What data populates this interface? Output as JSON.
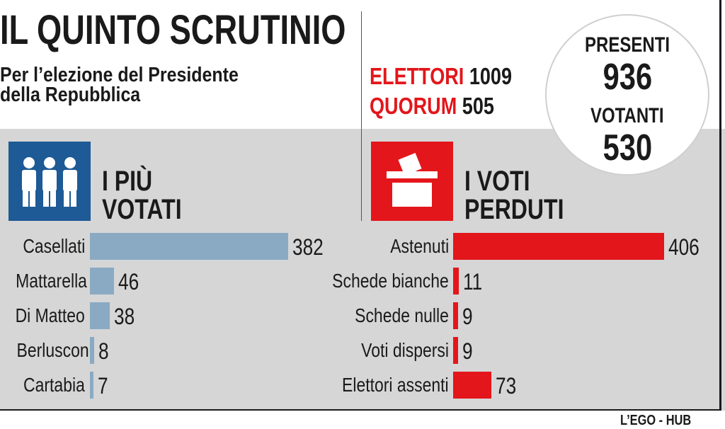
{
  "header": {
    "title": "IL QUINTO SCRUTINIO",
    "subtitle_line1": "Per l’elezione del Presidente",
    "subtitle_line2": "della Repubblica"
  },
  "stats": {
    "elettori_label": "ELETTORI",
    "elettori_value": "1009",
    "quorum_label": "QUORUM",
    "quorum_value": "505"
  },
  "circle": {
    "presenti_label": "PRESENTI",
    "presenti_value": "936",
    "votanti_label": "VOTANTI",
    "votanti_value": "530"
  },
  "sections": {
    "left_title_line1": "I PIÙ",
    "left_title_line2": "VOTATI",
    "left_icon": "people-icon",
    "right_title_line1": "I VOTI",
    "right_title_line2": "PERDUTI",
    "right_icon": "ballot-box-icon"
  },
  "colors": {
    "accent_red": "#e3161b",
    "bar_blue": "#8aaac4",
    "icon_blue": "#1d5a96"
  },
  "source": "L’EGO - HUB",
  "chart_data": [
    {
      "type": "bar",
      "orientation": "horizontal",
      "title": "I PIÙ VOTATI",
      "categories": [
        "Casellati",
        "Mattarella",
        "Di Matteo",
        "Berlusconi",
        "Cartabia"
      ],
      "values": [
        382,
        46,
        38,
        8,
        7
      ],
      "color": "#8aaac4"
    },
    {
      "type": "bar",
      "orientation": "horizontal",
      "title": "I VOTI PERDUTI",
      "categories": [
        "Astenuti",
        "Schede bianche",
        "Schede nulle",
        "Voti dispersi",
        "Elettori assenti"
      ],
      "values": [
        406,
        11,
        9,
        9,
        73
      ],
      "color": "#e3161b"
    }
  ]
}
